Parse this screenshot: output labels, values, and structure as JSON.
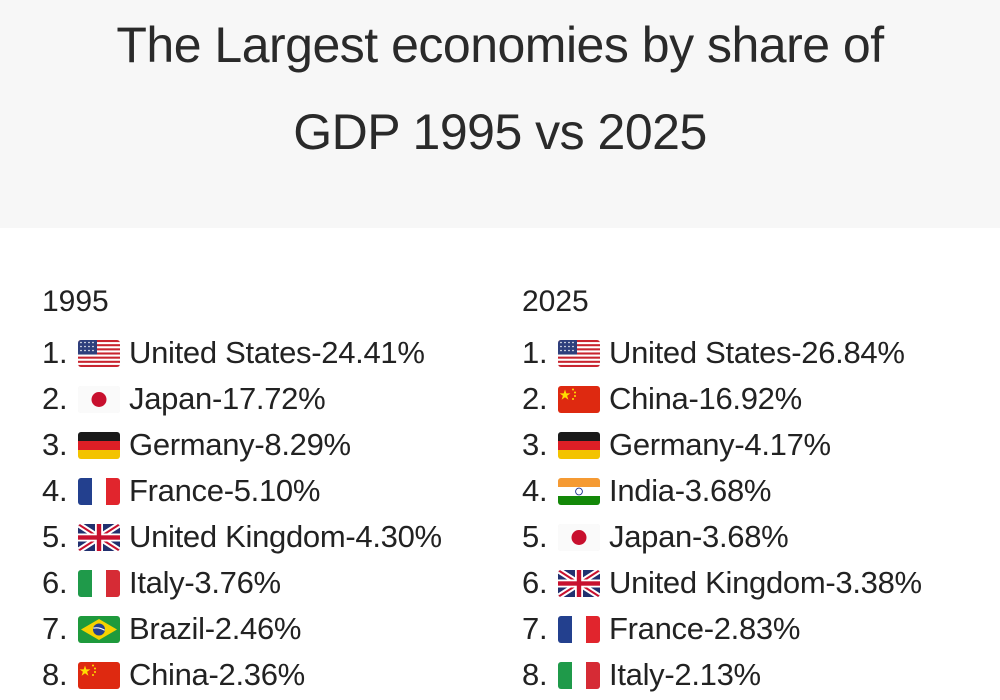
{
  "title": {
    "line1": "The Largest economies by share of",
    "line2": "GDP 1995 vs 2025"
  },
  "columns": [
    {
      "year": "1995",
      "items": [
        {
          "rank": "1.",
          "flag": "us-flag-icon",
          "country": "United States",
          "share": "24.41%"
        },
        {
          "rank": "2.",
          "flag": "japan-flag-icon",
          "country": "Japan",
          "share": "17.72%"
        },
        {
          "rank": "3.",
          "flag": "germany-flag-icon",
          "country": "Germany",
          "share": "8.29%"
        },
        {
          "rank": "4.",
          "flag": "france-flag-icon",
          "country": "France",
          "share": "5.10%"
        },
        {
          "rank": "5.",
          "flag": "uk-flag-icon",
          "country": "United Kingdom",
          "share": "4.30%"
        },
        {
          "rank": "6.",
          "flag": "italy-flag-icon",
          "country": "Italy",
          "share": "3.76%"
        },
        {
          "rank": "7.",
          "flag": "brazil-flag-icon",
          "country": "Brazil",
          "share": "2.46%"
        },
        {
          "rank": "8.",
          "flag": "china-flag-icon",
          "country": "China",
          "share": "2.36%"
        }
      ]
    },
    {
      "year": "2025",
      "items": [
        {
          "rank": "1.",
          "flag": "us-flag-icon",
          "country": "United States",
          "share": "26.84%"
        },
        {
          "rank": "2.",
          "flag": "china-flag-icon",
          "country": "China",
          "share": "16.92%"
        },
        {
          "rank": "3.",
          "flag": "germany-flag-icon",
          "country": "Germany",
          "share": "4.17%"
        },
        {
          "rank": "4.",
          "flag": "india-flag-icon",
          "country": "India",
          "share": "3.68%"
        },
        {
          "rank": "5.",
          "flag": "japan-flag-icon",
          "country": "Japan",
          "share": "3.68%"
        },
        {
          "rank": "6.",
          "flag": "uk-flag-icon",
          "country": "United Kingdom",
          "share": "3.38%"
        },
        {
          "rank": "7.",
          "flag": "france-flag-icon",
          "country": "France",
          "share": "2.83%"
        },
        {
          "rank": "8.",
          "flag": "italy-flag-icon",
          "country": "Italy",
          "share": "2.13%"
        }
      ]
    }
  ],
  "separator": " - ",
  "colors": {
    "text": "#222222",
    "title_band": "#f7f7f7",
    "background": "#ffffff"
  }
}
